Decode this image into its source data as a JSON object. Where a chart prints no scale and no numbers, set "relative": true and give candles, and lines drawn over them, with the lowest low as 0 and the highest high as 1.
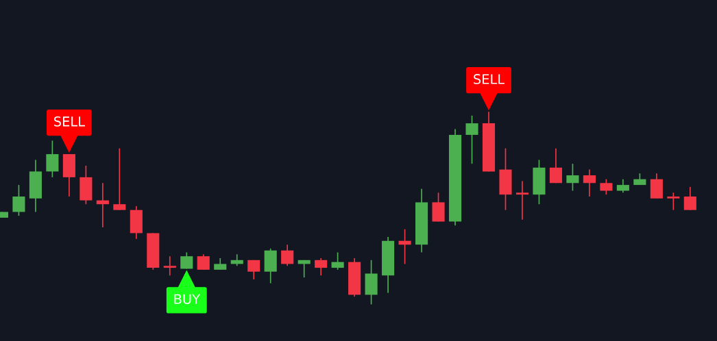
{
  "chart_data": {
    "type": "candlestick",
    "relative": true,
    "categories": [
      null,
      null,
      null,
      null,
      null,
      null,
      null,
      null,
      null,
      null,
      null,
      null,
      null,
      null,
      null,
      null,
      null,
      null,
      null,
      null,
      null,
      null,
      null,
      null,
      null,
      null,
      null,
      null,
      null,
      null,
      null,
      null,
      null,
      null,
      null,
      null,
      null,
      null,
      null,
      null,
      null,
      null
    ],
    "ohlc": [
      [
        0.45,
        0.48,
        0.45,
        0.48
      ],
      [
        0.48,
        0.62,
        0.46,
        0.56
      ],
      [
        0.55,
        0.75,
        0.48,
        0.69
      ],
      [
        0.69,
        0.85,
        0.66,
        0.78
      ],
      [
        0.78,
        0.78,
        0.56,
        0.66
      ],
      [
        0.66,
        0.72,
        0.52,
        0.54
      ],
      [
        0.54,
        0.63,
        0.4,
        0.52
      ],
      [
        0.52,
        0.81,
        0.49,
        0.49
      ],
      [
        0.49,
        0.51,
        0.34,
        0.37
      ],
      [
        0.37,
        0.37,
        0.18,
        0.19
      ],
      [
        0.2,
        0.25,
        0.15,
        0.19
      ],
      [
        0.185,
        0.27,
        0.185,
        0.25
      ],
      [
        0.25,
        0.26,
        0.18,
        0.18
      ],
      [
        0.18,
        0.24,
        0.18,
        0.21
      ],
      [
        0.21,
        0.26,
        0.2,
        0.23
      ],
      [
        0.23,
        0.23,
        0.13,
        0.17
      ],
      [
        0.17,
        0.29,
        0.11,
        0.28
      ],
      [
        0.28,
        0.31,
        0.2,
        0.21
      ],
      [
        0.21,
        0.23,
        0.14,
        0.23
      ],
      [
        0.23,
        0.24,
        0.15,
        0.19
      ],
      [
        0.19,
        0.27,
        0.18,
        0.22
      ],
      [
        0.22,
        0.24,
        0.04,
        0.05
      ],
      [
        0.05,
        0.23,
        0,
        0.16
      ],
      [
        0.15,
        0.35,
        0.06,
        0.33
      ],
      [
        0.33,
        0.39,
        0.21,
        0.31
      ],
      [
        0.31,
        0.6,
        0.27,
        0.53
      ],
      [
        0.53,
        0.58,
        0.43,
        0.43
      ],
      [
        0.43,
        0.91,
        0.41,
        0.88
      ],
      [
        0.88,
        0.98,
        0.73,
        0.94
      ],
      [
        0.94,
        1,
        0.69,
        0.69
      ],
      [
        0.7,
        0.81,
        0.49,
        0.57
      ],
      [
        0.58,
        0.64,
        0.44,
        0.57
      ],
      [
        0.57,
        0.75,
        0.52,
        0.71
      ],
      [
        0.71,
        0.81,
        0.63,
        0.63
      ],
      [
        0.63,
        0.73,
        0.59,
        0.67
      ],
      [
        0.67,
        0.7,
        0.56,
        0.63
      ],
      [
        0.63,
        0.65,
        0.57,
        0.59
      ],
      [
        0.59,
        0.65,
        0.58,
        0.62
      ],
      [
        0.62,
        0.68,
        0.62,
        0.65
      ],
      [
        0.65,
        0.68,
        0.55,
        0.55
      ],
      [
        0.56,
        0.58,
        0.49,
        0.55
      ],
      [
        0.56,
        0.61,
        0.49,
        0.49
      ]
    ],
    "colors": [
      "#4caf50",
      "#4caf50",
      "#4caf50",
      "#4caf50",
      "#f23645",
      "#f23645",
      "#f23645",
      "#f23645",
      "#f23645",
      "#f23645",
      "#f23645",
      "#4caf50",
      "#f23645",
      "#4caf50",
      "#4caf50",
      "#f23645",
      "#4caf50",
      "#f23645",
      "#4caf50",
      "#f23645",
      "#4caf50",
      "#f23645",
      "#4caf50",
      "#4caf50",
      "#f23645",
      "#4caf50",
      "#f23645",
      "#4caf50",
      "#4caf50",
      "#f23645",
      "#f23645",
      "#f23645",
      "#4caf50",
      "#f23645",
      "#4caf50",
      "#f23645",
      "#f23645",
      "#4caf50",
      "#4caf50",
      "#f23645",
      "#f23645",
      "#f23645"
    ],
    "annotations": [
      {
        "text": "SELL",
        "y": 0.78
      },
      {
        "text": "BUY",
        "y": 0.185
      },
      {
        "text": "SELL",
        "y": 1
      }
    ]
  }
}
